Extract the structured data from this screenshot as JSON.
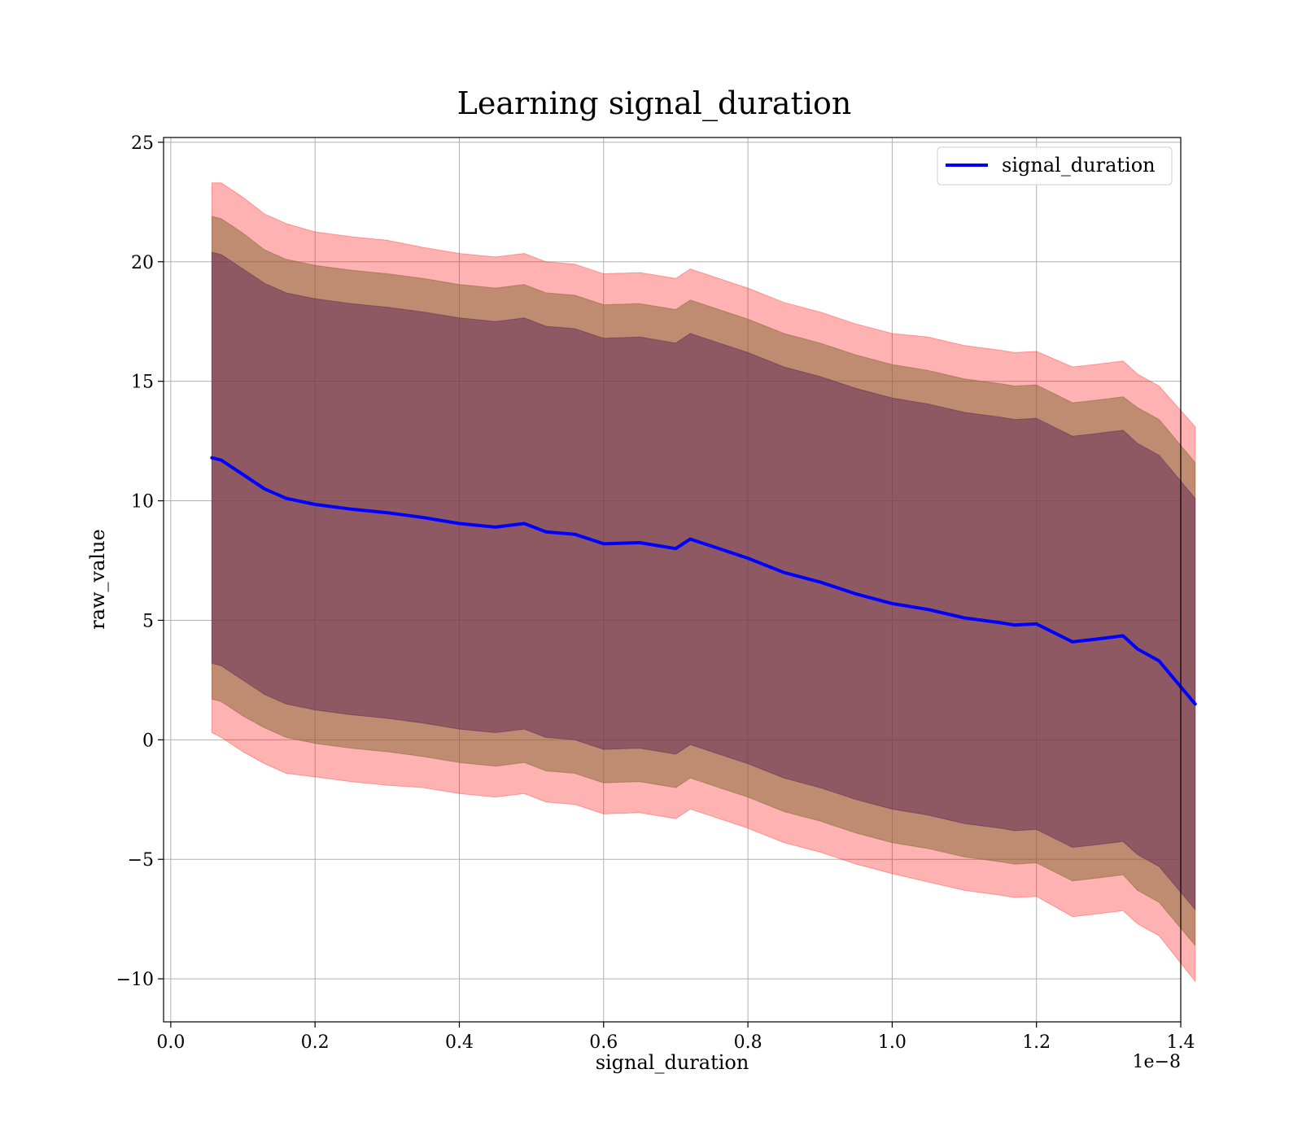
{
  "chart_data": {
    "type": "line",
    "title": "Learning signal_duration",
    "xlabel": "signal_duration",
    "ylabel": "raw_value",
    "x_offset_label": "1e−8",
    "xlim": [
      -0.01,
      1.4
    ],
    "ylim": [
      -11.8,
      25.2
    ],
    "x_ticks": [
      0.0,
      0.2,
      0.4,
      0.6,
      0.8,
      1.0,
      1.2,
      1.4
    ],
    "x_tick_labels": [
      "0.0",
      "0.2",
      "0.4",
      "0.6",
      "0.8",
      "1.0",
      "1.2",
      "1.4"
    ],
    "y_ticks": [
      -10,
      -5,
      0,
      5,
      10,
      15,
      20,
      25
    ],
    "y_tick_labels": [
      "−10",
      "−5",
      "0",
      "5",
      "10",
      "15",
      "20",
      "25"
    ],
    "grid": true,
    "legend_position": "top-right",
    "series": [
      {
        "name": "signal_duration",
        "color": "#0000ff",
        "x": [
          0.057,
          0.07,
          0.1,
          0.13,
          0.16,
          0.2,
          0.25,
          0.3,
          0.35,
          0.4,
          0.45,
          0.49,
          0.52,
          0.56,
          0.6,
          0.65,
          0.7,
          0.72,
          0.75,
          0.8,
          0.85,
          0.9,
          0.95,
          1.0,
          1.05,
          1.1,
          1.15,
          1.17,
          1.2,
          1.25,
          1.28,
          1.32,
          1.34,
          1.37,
          1.42
        ],
        "values": [
          11.8,
          11.7,
          11.1,
          10.5,
          10.1,
          9.85,
          9.65,
          9.5,
          9.3,
          9.05,
          8.9,
          9.05,
          8.7,
          8.6,
          8.2,
          8.25,
          8.0,
          8.4,
          8.1,
          7.6,
          7.0,
          6.6,
          6.1,
          5.7,
          5.45,
          5.1,
          4.9,
          4.8,
          4.85,
          4.1,
          4.2,
          4.35,
          3.8,
          3.3,
          1.5
        ]
      }
    ],
    "bands": [
      {
        "color": "#ff0000",
        "opacity": 0.3,
        "half_width": [
          11.5,
          11.6,
          11.6,
          11.5,
          11.5,
          11.4,
          11.4,
          11.4,
          11.3,
          11.3,
          11.3,
          11.3,
          11.3,
          11.3,
          11.3,
          11.3,
          11.3,
          11.3,
          11.3,
          11.3,
          11.3,
          11.3,
          11.3,
          11.3,
          11.4,
          11.4,
          11.4,
          11.4,
          11.4,
          11.5,
          11.5,
          11.5,
          11.5,
          11.5,
          11.6
        ]
      },
      {
        "color": "#8b6b3d",
        "opacity": 0.55,
        "half_width": [
          10.1,
          10.1,
          10.1,
          10.0,
          10.0,
          10.0,
          10.0,
          10.0,
          10.0,
          10.0,
          10.0,
          10.0,
          10.0,
          10.0,
          10.0,
          10.0,
          10.0,
          10.0,
          10.0,
          10.0,
          10.0,
          10.0,
          10.0,
          10.0,
          10.0,
          10.0,
          10.0,
          10.0,
          10.0,
          10.0,
          10.0,
          10.0,
          10.1,
          10.1,
          10.1
        ]
      },
      {
        "color": "#5e2855",
        "opacity": 0.5,
        "half_width": [
          8.6,
          8.6,
          8.6,
          8.6,
          8.6,
          8.6,
          8.6,
          8.6,
          8.6,
          8.6,
          8.6,
          8.6,
          8.6,
          8.6,
          8.6,
          8.6,
          8.6,
          8.6,
          8.6,
          8.6,
          8.6,
          8.6,
          8.6,
          8.6,
          8.6,
          8.6,
          8.6,
          8.6,
          8.6,
          8.6,
          8.6,
          8.6,
          8.6,
          8.6,
          8.6
        ]
      }
    ]
  }
}
